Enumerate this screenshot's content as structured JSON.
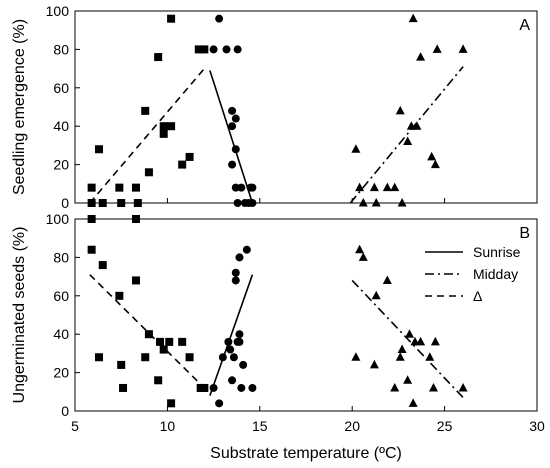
{
  "chart_data": [
    {
      "type": "scatter",
      "panel": "A",
      "xlabel": "Substrate temperature (ºC)",
      "ylabel": "Seedling emergence (%)",
      "xlim": [
        5,
        30
      ],
      "ylim": [
        0,
        100
      ],
      "xticks": [
        "5",
        "10",
        "15",
        "20",
        "25",
        "30"
      ],
      "yticks": [
        "0",
        "20",
        "40",
        "60",
        "80",
        "100"
      ],
      "series": [
        {
          "marker": "square",
          "points": [
            [
              5.9,
              8
            ],
            [
              5.9,
              0
            ],
            [
              6.3,
              28
            ],
            [
              6.5,
              0
            ],
            [
              7.4,
              8
            ],
            [
              7.5,
              0
            ],
            [
              8.3,
              8
            ],
            [
              8.4,
              0
            ],
            [
              8.8,
              48
            ],
            [
              9.0,
              16
            ],
            [
              9.5,
              76
            ],
            [
              9.8,
              40
            ],
            [
              9.8,
              36
            ],
            [
              10.2,
              96
            ],
            [
              10.2,
              40
            ],
            [
              10.8,
              20
            ],
            [
              11.2,
              24
            ],
            [
              11.7,
              80
            ],
            [
              12.0,
              80
            ]
          ]
        },
        {
          "name": "Sunrise",
          "marker": "circle",
          "points": [
            [
              12.5,
              80
            ],
            [
              12.8,
              96
            ],
            [
              13.2,
              80
            ],
            [
              13.8,
              80
            ],
            [
              13.5,
              48
            ],
            [
              13.7,
              44
            ],
            [
              13.5,
              40
            ],
            [
              13.7,
              28
            ],
            [
              13.5,
              20
            ],
            [
              13.7,
              8
            ],
            [
              14.0,
              8
            ],
            [
              13.8,
              0
            ],
            [
              14.2,
              0
            ],
            [
              14.4,
              0
            ],
            [
              14.5,
              8
            ],
            [
              14.6,
              8
            ],
            [
              14.6,
              0
            ]
          ]
        },
        {
          "name": "Midday",
          "marker": "triangle",
          "points": [
            [
              20.2,
              28
            ],
            [
              20.4,
              8
            ],
            [
              20.6,
              0
            ],
            [
              21.2,
              8
            ],
            [
              21.3,
              0
            ],
            [
              21.9,
              8
            ],
            [
              22.3,
              8
            ],
            [
              22.6,
              48
            ],
            [
              22.7,
              0
            ],
            [
              23.0,
              32
            ],
            [
              23.2,
              40
            ],
            [
              23.3,
              96
            ],
            [
              23.5,
              40
            ],
            [
              23.7,
              76
            ],
            [
              24.3,
              24
            ],
            [
              24.5,
              20
            ],
            [
              24.6,
              80
            ],
            [
              26.0,
              80
            ]
          ]
        }
      ],
      "fits": [
        {
          "name": "Δ",
          "style": "dashed",
          "x": [
            5.8,
            12.0
          ],
          "y": [
            0,
            70
          ]
        },
        {
          "name": "Sunrise",
          "style": "solid",
          "x": [
            12.3,
            14.6
          ],
          "y": [
            69,
            0
          ]
        },
        {
          "name": "Midday",
          "style": "dash-dot",
          "x": [
            19.9,
            26.0
          ],
          "y": [
            0,
            71
          ]
        }
      ]
    },
    {
      "type": "scatter",
      "panel": "B",
      "xlabel": "Substrate temperature (ºC)",
      "ylabel": "Ungerminated seeds (%)",
      "xlim": [
        5,
        30
      ],
      "ylim": [
        0,
        100
      ],
      "xticks": [
        "5",
        "10",
        "15",
        "20",
        "25",
        "30"
      ],
      "yticks": [
        "0",
        "20",
        "40",
        "60",
        "80",
        "100"
      ],
      "series": [
        {
          "marker": "square",
          "points": [
            [
              5.9,
              100
            ],
            [
              5.9,
              84
            ],
            [
              6.3,
              28
            ],
            [
              6.5,
              76
            ],
            [
              7.4,
              60
            ],
            [
              7.5,
              24
            ],
            [
              7.6,
              12
            ],
            [
              8.3,
              68
            ],
            [
              8.3,
              100
            ],
            [
              8.8,
              28
            ],
            [
              9.0,
              40
            ],
            [
              9.5,
              16
            ],
            [
              9.6,
              36
            ],
            [
              9.8,
              32
            ],
            [
              10.1,
              36
            ],
            [
              10.2,
              4
            ],
            [
              10.8,
              36
            ],
            [
              11.2,
              28
            ],
            [
              11.8,
              12
            ],
            [
              12.0,
              12
            ]
          ]
        },
        {
          "name": "Sunrise",
          "marker": "circle",
          "points": [
            [
              12.5,
              12
            ],
            [
              12.8,
              4
            ],
            [
              13.0,
              28
            ],
            [
              13.3,
              36
            ],
            [
              13.4,
              32
            ],
            [
              13.5,
              16
            ],
            [
              13.6,
              28
            ],
            [
              13.7,
              68
            ],
            [
              13.7,
              72
            ],
            [
              13.8,
              36
            ],
            [
              13.9,
              40
            ],
            [
              13.9,
              36
            ],
            [
              13.9,
              80
            ],
            [
              14.0,
              12
            ],
            [
              14.1,
              24
            ],
            [
              14.3,
              84
            ],
            [
              14.6,
              12
            ]
          ]
        },
        {
          "name": "Midday",
          "marker": "triangle",
          "points": [
            [
              20.2,
              28
            ],
            [
              20.4,
              84
            ],
            [
              20.6,
              80
            ],
            [
              21.2,
              24
            ],
            [
              21.3,
              60
            ],
            [
              21.9,
              68
            ],
            [
              22.3,
              12
            ],
            [
              22.6,
              28
            ],
            [
              22.7,
              32
            ],
            [
              23.0,
              16
            ],
            [
              23.1,
              40
            ],
            [
              23.3,
              4
            ],
            [
              23.4,
              36
            ],
            [
              23.7,
              36
            ],
            [
              24.2,
              28
            ],
            [
              24.4,
              12
            ],
            [
              24.5,
              36
            ],
            [
              26.0,
              12
            ]
          ]
        }
      ],
      "fits": [
        {
          "name": "Δ",
          "style": "dashed",
          "x": [
            5.8,
            12.0
          ],
          "y": [
            71,
            12
          ]
        },
        {
          "name": "Sunrise",
          "style": "solid",
          "x": [
            12.3,
            14.6
          ],
          "y": [
            8,
            71
          ]
        },
        {
          "name": "Midday",
          "style": "dash-dot",
          "x": [
            20.0,
            26.0
          ],
          "y": [
            68,
            7
          ]
        }
      ],
      "legend": {
        "placement": "top-right",
        "entries": [
          {
            "label": "Sunrise",
            "style": "solid"
          },
          {
            "label": "Midday",
            "style": "dash-dot"
          },
          {
            "label": "Δ",
            "style": "dashed"
          }
        ]
      }
    }
  ]
}
